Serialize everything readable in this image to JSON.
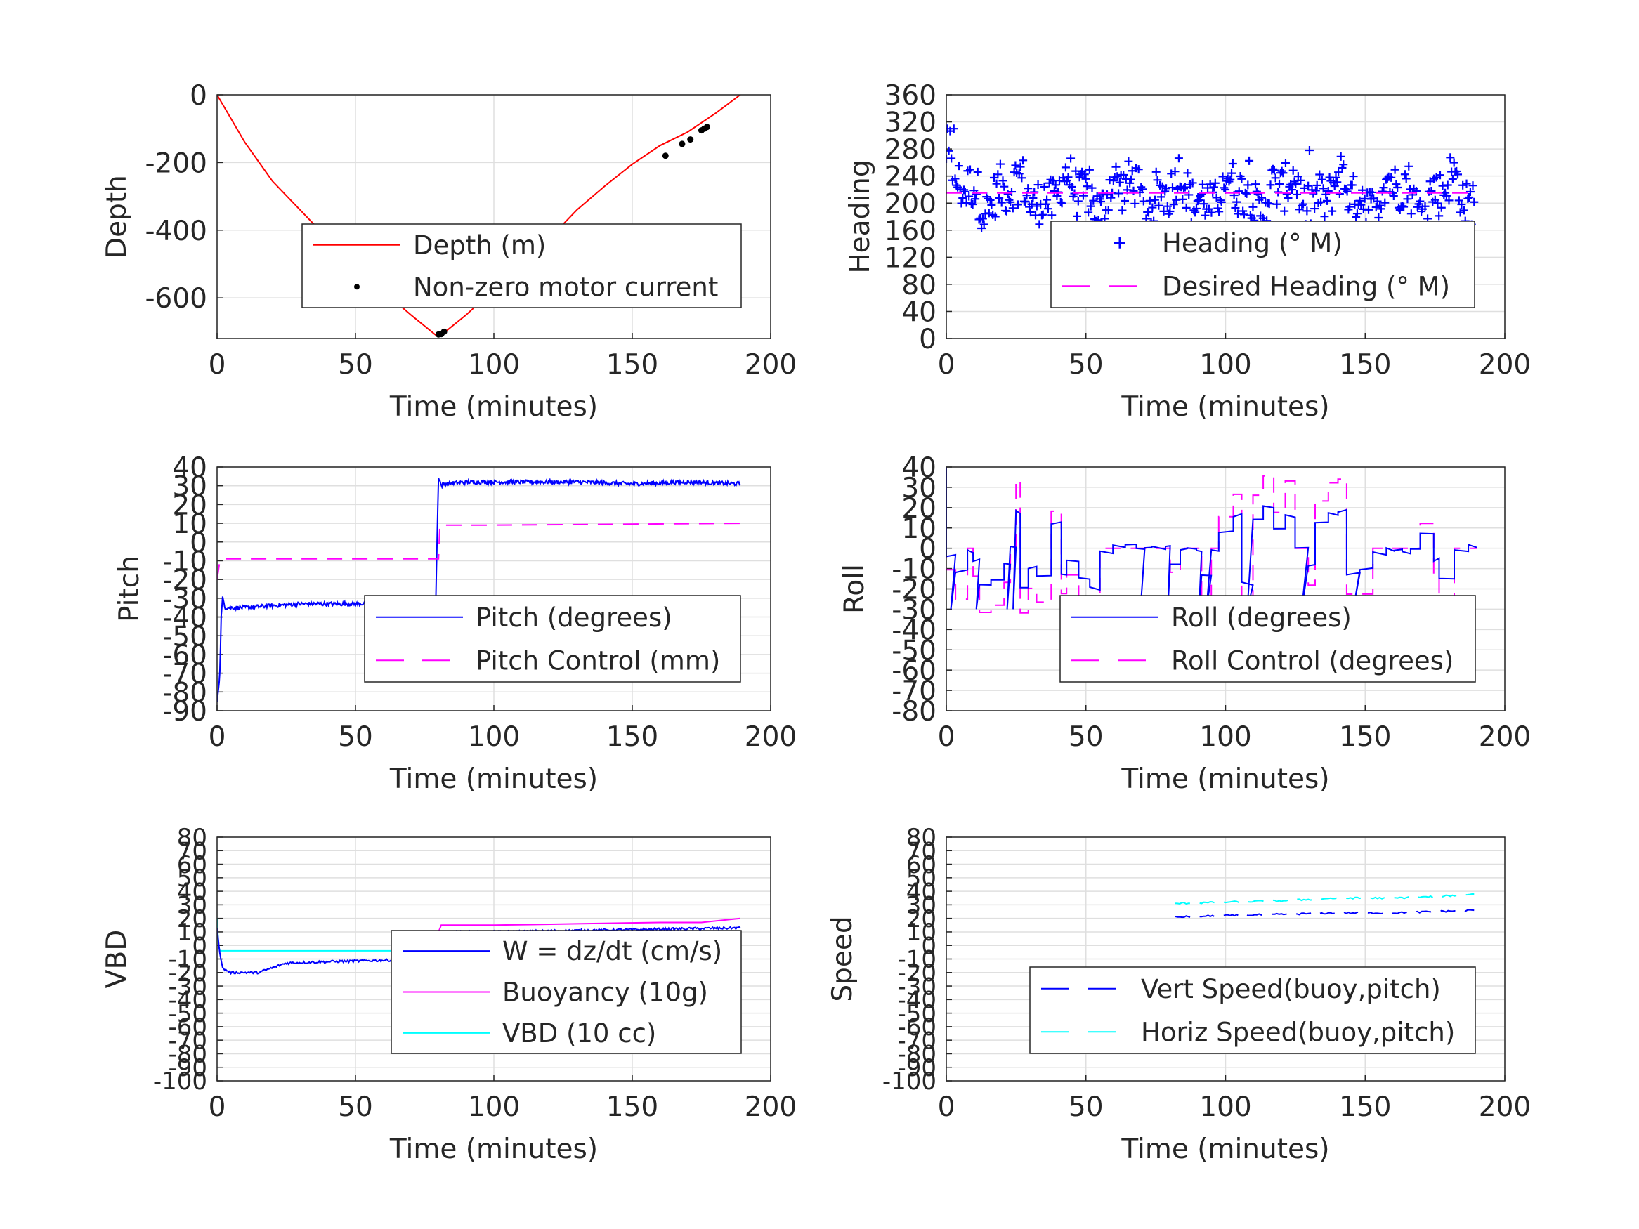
{
  "chart_data": [
    {
      "id": "depth",
      "type": "line",
      "ylabel": "Depth",
      "xlabel": "Time (minutes)",
      "xlim": [
        0,
        200
      ],
      "ylim": [
        -720,
        0
      ],
      "xticks": [
        0,
        50,
        100,
        150,
        200
      ],
      "yticks": [
        0,
        -200,
        -400,
        -600
      ],
      "grid": true,
      "legend_placement": "center-right",
      "series": [
        {
          "name": "Depth (m)",
          "color": "#ff0000",
          "style": "solid",
          "x": [
            0,
            10,
            20,
            30,
            40,
            50,
            60,
            70,
            79,
            82,
            90,
            100,
            110,
            120,
            130,
            140,
            150,
            160,
            170,
            180,
            189
          ],
          "y": [
            0,
            -140,
            -255,
            -340,
            -425,
            -505,
            -580,
            -650,
            -710,
            -703,
            -650,
            -575,
            -500,
            -425,
            -340,
            -270,
            -205,
            -150,
            -110,
            -55,
            0
          ]
        },
        {
          "name": "Non-zero motor current",
          "color": "#000000",
          "style": "dots",
          "x": [
            80,
            81,
            82,
            123,
            162,
            168,
            171,
            175,
            176,
            177
          ],
          "y": [
            -708,
            -707,
            -700,
            -440,
            -180,
            -145,
            -132,
            -105,
            -100,
            -95
          ]
        }
      ]
    },
    {
      "id": "heading",
      "type": "scatter",
      "ylabel": "Heading",
      "xlabel": "Time (minutes)",
      "xlim": [
        0,
        200
      ],
      "ylim": [
        0,
        360
      ],
      "xticks": [
        0,
        50,
        100,
        150,
        200
      ],
      "yticks": [
        0,
        40,
        80,
        120,
        160,
        200,
        240,
        280,
        320,
        360
      ],
      "grid": true,
      "legend_placement": "lower-right",
      "series": [
        {
          "name": "Heading (° M)",
          "color": "#0000ff",
          "style": "plus"
        },
        {
          "name": "Desired Heading (° M)",
          "color": "#ff00ff",
          "style": "dashed",
          "x": [
            0,
            189
          ],
          "y": [
            215,
            215
          ]
        }
      ]
    },
    {
      "id": "pitch",
      "type": "line",
      "ylabel": "Pitch",
      "xlabel": "Time (minutes)",
      "xlim": [
        0,
        200
      ],
      "ylim": [
        -90,
        40
      ],
      "xticks": [
        0,
        50,
        100,
        150,
        200
      ],
      "yticks": [
        40,
        30,
        20,
        10,
        0,
        -10,
        -20,
        -30,
        -40,
        -50,
        -60,
        -70,
        -80,
        -90
      ],
      "grid": true,
      "legend_placement": "lower-right",
      "series": [
        {
          "name": "Pitch (degrees)",
          "color": "#0000ff",
          "style": "solid",
          "x": [
            0,
            1,
            1.5,
            2,
            3,
            10,
            30,
            50,
            70,
            79,
            80,
            81,
            82,
            90,
            110,
            130,
            150,
            170,
            189
          ],
          "y": [
            -85,
            -70,
            -40,
            -30,
            -35,
            -35,
            -33,
            -33,
            -32,
            -32,
            35,
            30,
            31,
            32,
            32,
            32,
            31,
            32,
            31
          ]
        },
        {
          "name": "Pitch Control (mm)",
          "color": "#ff00ff",
          "style": "dashed",
          "x": [
            0,
            1,
            2,
            80,
            80.5,
            100,
            189
          ],
          "y": [
            -20,
            -10,
            -9,
            -9,
            9,
            9,
            10
          ]
        }
      ]
    },
    {
      "id": "roll",
      "type": "line",
      "ylabel": "Roll",
      "xlabel": "Time (minutes)",
      "xlim": [
        0,
        200
      ],
      "ylim": [
        -80,
        40
      ],
      "xticks": [
        0,
        50,
        100,
        150,
        200
      ],
      "yticks": [
        40,
        30,
        20,
        10,
        0,
        -10,
        -20,
        -30,
        -40,
        -50,
        -60,
        -70,
        -80
      ],
      "grid": true,
      "legend_placement": "lower-right",
      "series": [
        {
          "name": "Roll (degrees)",
          "color": "#0000ff",
          "style": "solid"
        },
        {
          "name": "Roll Control (degrees)",
          "color": "#ff00ff",
          "style": "dashed"
        }
      ]
    },
    {
      "id": "vbd",
      "type": "line",
      "ylabel": "VBD",
      "xlabel": "Time (minutes)",
      "xlim": [
        0,
        200
      ],
      "ylim": [
        -100,
        80
      ],
      "xticks": [
        0,
        50,
        100,
        150,
        200
      ],
      "yticks": [
        80,
        70,
        60,
        50,
        40,
        30,
        20,
        10,
        0,
        -10,
        -20,
        -30,
        -40,
        -50,
        -60,
        -70,
        -80,
        -90,
        -100
      ],
      "grid": true,
      "legend_placement": "center-right",
      "series": [
        {
          "name": "W = dz/dt (cm/s)",
          "color": "#0000ff",
          "style": "solid",
          "x": [
            0,
            1,
            2,
            5,
            15,
            25,
            40,
            60,
            79,
            80,
            82,
            100,
            130,
            160,
            189
          ],
          "y": [
            12,
            -5,
            -17,
            -20,
            -20,
            -13,
            -12,
            -11,
            -10,
            6,
            10,
            10,
            11,
            12,
            13
          ]
        },
        {
          "name": "Buoyancy (10g)",
          "color": "#ff00ff",
          "style": "solid",
          "x": [
            80,
            81,
            100,
            130,
            160,
            175,
            189
          ],
          "y": [
            10,
            15,
            15,
            16,
            17,
            17,
            20
          ]
        },
        {
          "name": "VBD (10 cc)",
          "color": "#00ffff",
          "style": "solid",
          "x": [
            0,
            0.5,
            1,
            2,
            80,
            81,
            189
          ],
          "y": [
            20,
            0,
            -4,
            -4,
            -4,
            10,
            10
          ]
        }
      ]
    },
    {
      "id": "speed",
      "type": "line",
      "ylabel": "Speed",
      "xlabel": "Time (minutes)",
      "xlim": [
        0,
        200
      ],
      "ylim": [
        -100,
        80
      ],
      "xticks": [
        0,
        50,
        100,
        150,
        200
      ],
      "yticks": [
        80,
        70,
        60,
        50,
        40,
        30,
        20,
        10,
        0,
        -10,
        -20,
        -30,
        -40,
        -50,
        -60,
        -70,
        -80,
        -90,
        -100
      ],
      "grid": true,
      "legend_placement": "lower-right",
      "series": [
        {
          "name": "Vert Speed(buoy,pitch)",
          "color": "#0000ff",
          "style": "dashed",
          "x": [
            82,
            100,
            120,
            140,
            160,
            175,
            189
          ],
          "y": [
            21,
            22,
            23,
            24,
            24,
            25,
            26
          ]
        },
        {
          "name": "Horiz Speed(buoy,pitch)",
          "color": "#00ffff",
          "style": "dashed",
          "x": [
            82,
            100,
            120,
            140,
            160,
            175,
            189
          ],
          "y": [
            31,
            32,
            33,
            35,
            35,
            36,
            38
          ]
        }
      ]
    }
  ]
}
